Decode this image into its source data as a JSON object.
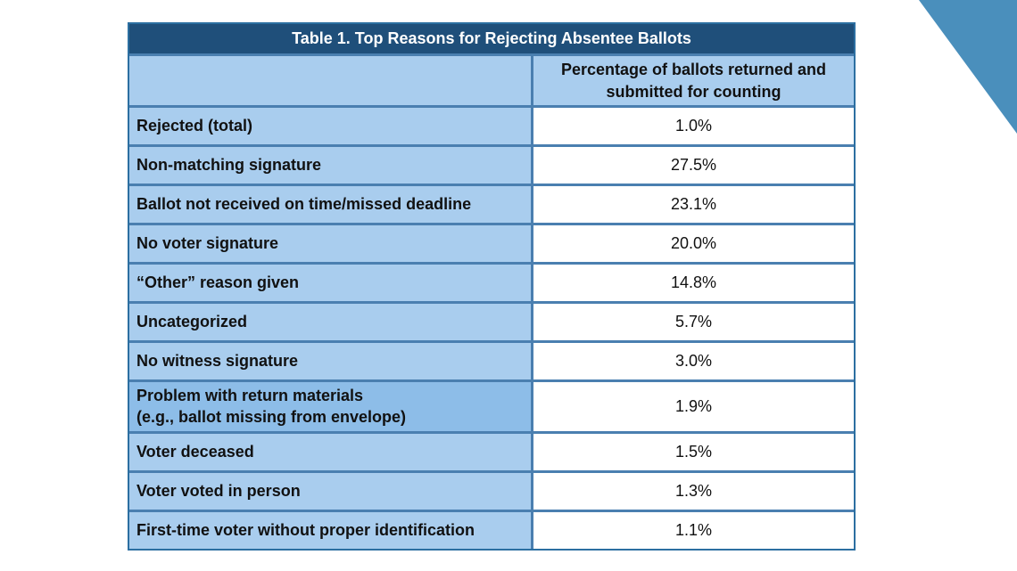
{
  "title": "Table 1. Top Reasons for Rejecting Absentee Ballots",
  "header": {
    "col1": "",
    "col2_line1": "Percentage of ballots returned and",
    "col2_line2": "submitted for counting"
  },
  "rows": [
    {
      "label": "Rejected (total)",
      "value": "1.0%"
    },
    {
      "label": "Non-matching signature",
      "value": "27.5%"
    },
    {
      "label": "Ballot not received on time/missed deadline",
      "value": "23.1%"
    },
    {
      "label": "No voter signature",
      "value": "20.0%"
    },
    {
      "label": "“Other” reason given",
      "value": "14.8%"
    },
    {
      "label": "Uncategorized",
      "value": "5.7%"
    },
    {
      "label": "No witness signature",
      "value": "3.0%"
    },
    {
      "label": "Problem with return materials",
      "label2": "(e.g., ballot missing from envelope)",
      "value": "1.9%"
    },
    {
      "label": "Voter deceased",
      "value": "1.5%"
    },
    {
      "label": "Voter voted in person",
      "value": "1.3%"
    },
    {
      "label": "First-time voter without proper identification",
      "value": "1.1%"
    }
  ],
  "colors": {
    "title_bg": "#1f4f7a",
    "label_bg": "#a9cdee",
    "border": "#4a7fb0",
    "accent_corner": "#4a8fbc"
  }
}
